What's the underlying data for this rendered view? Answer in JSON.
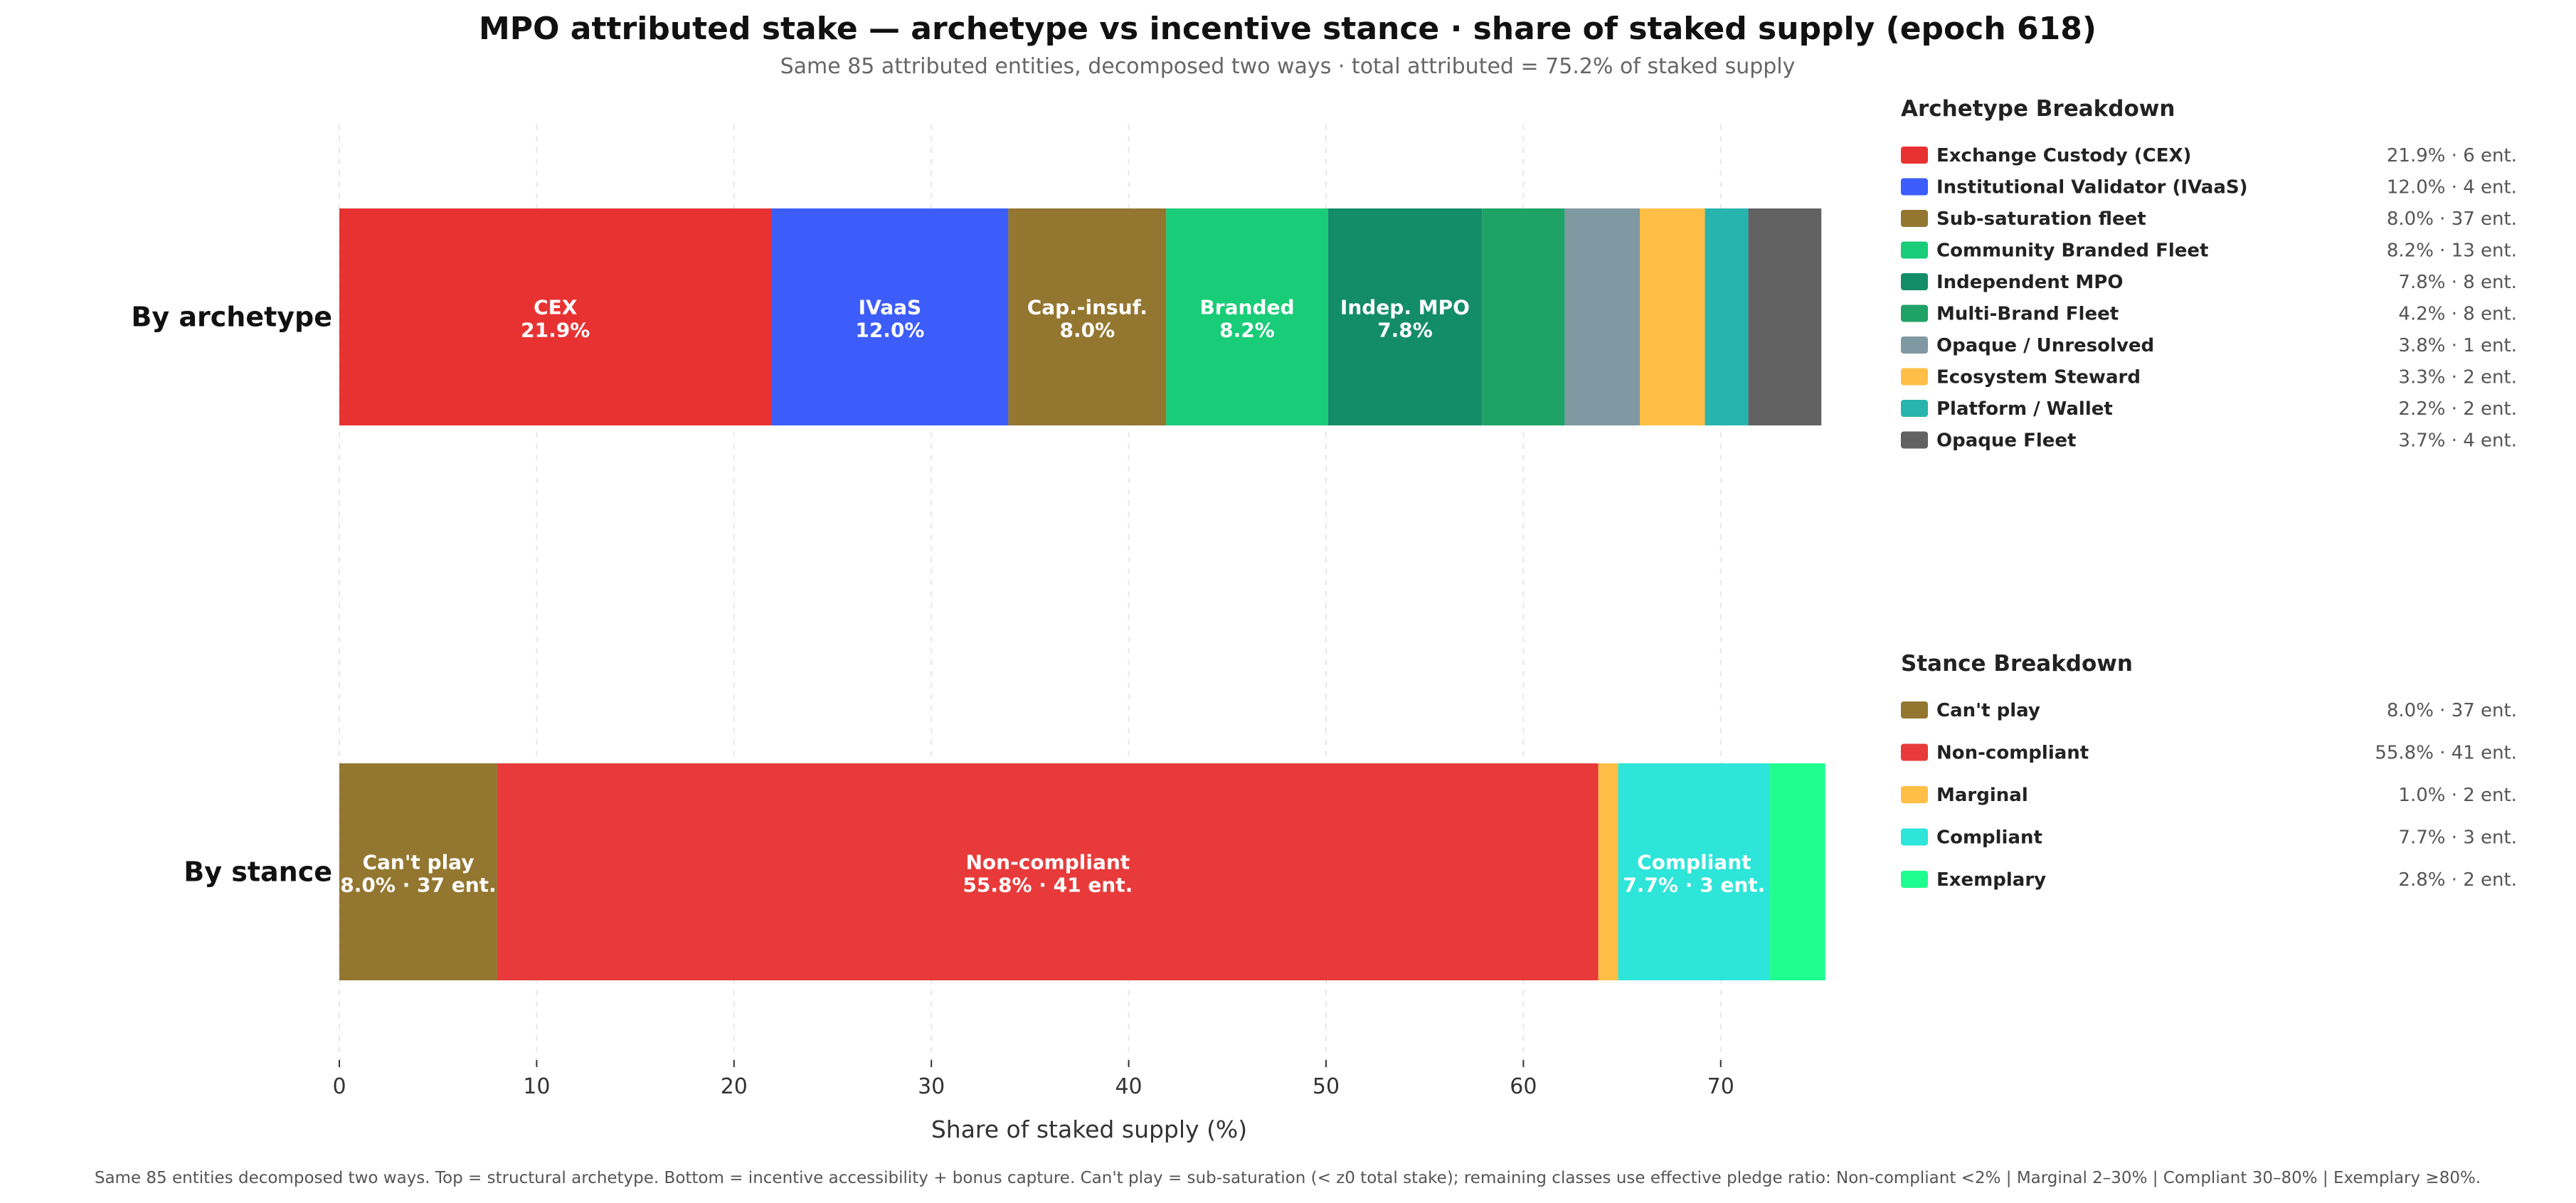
{
  "chart_data": {
    "type": "bar",
    "orientation": "horizontal-stacked",
    "title": "MPO attributed stake — archetype vs incentive stance · share of staked supply (epoch 618)",
    "subtitle": "Same 85 attributed entities, decomposed two ways · total attributed = 75.2% of staked supply",
    "xlabel": "Share of staked supply (%)",
    "xlim": [
      0,
      75.2
    ],
    "xticks": [
      0,
      10,
      20,
      30,
      40,
      50,
      60,
      70
    ],
    "grid": "vertical dashed",
    "footnote": "Same 85 entities decomposed two ways. Top = structural archetype. Bottom = incentive accessibility + bonus capture. Can't play = sub-saturation (< z0 total stake); remaining classes use effective pledge ratio: Non-compliant <2% | Marginal 2–30% | Compliant 30–80% | Exemplary ≥80%.",
    "rows": [
      {
        "label": "By archetype",
        "legend_title": "Archetype Breakdown",
        "segments": [
          {
            "name": "Exchange Custody (CEX)",
            "value": 21.9,
            "entities": 6,
            "legend_value": "21.9% · 6 ent.",
            "color": "#e83232",
            "bar_label": [
              "CEX",
              "21.9%"
            ]
          },
          {
            "name": "Institutional Validator (IVaaS)",
            "value": 12.0,
            "entities": 4,
            "legend_value": "12.0% · 4 ent.",
            "color": "#3c5dfa",
            "bar_label": [
              "IVaaS",
              "12.0%"
            ]
          },
          {
            "name": "Sub-saturation fleet",
            "value": 8.0,
            "entities": 37,
            "legend_value": "8.0% · 37 ent.",
            "color": "#937630",
            "bar_label": [
              "Cap.-insuf.",
              "8.0%"
            ]
          },
          {
            "name": "Community Branded Fleet",
            "value": 8.2,
            "entities": 13,
            "legend_value": "8.2% · 13 ent.",
            "color": "#19cc78",
            "bar_label": [
              "Branded",
              "8.2%"
            ]
          },
          {
            "name": "Independent MPO",
            "value": 7.8,
            "entities": 8,
            "legend_value": "7.8% · 8 ent.",
            "color": "#138d68",
            "bar_label": [
              "Indep. MPO",
              "7.8%"
            ]
          },
          {
            "name": "Multi-Brand Fleet",
            "value": 4.2,
            "entities": 8,
            "legend_value": "4.2% · 8 ent.",
            "color": "#1fa266",
            "bar_label": []
          },
          {
            "name": "Opaque / Unresolved",
            "value": 3.8,
            "entities": 1,
            "legend_value": "3.8% · 1 ent.",
            "color": "#8098a2",
            "bar_label": []
          },
          {
            "name": "Ecosystem Steward",
            "value": 3.3,
            "entities": 2,
            "legend_value": "3.3% · 2 ent.",
            "color": "#ffbe45",
            "bar_label": []
          },
          {
            "name": "Platform / Wallet",
            "value": 2.2,
            "entities": 2,
            "legend_value": "2.2% · 2 ent.",
            "color": "#27b4ae",
            "bar_label": []
          },
          {
            "name": "Opaque Fleet",
            "value": 3.7,
            "entities": 4,
            "legend_value": "3.7% · 4 ent.",
            "color": "#626262",
            "bar_label": []
          }
        ]
      },
      {
        "label": "By stance",
        "legend_title": "Stance Breakdown",
        "segments": [
          {
            "name": "Can't play",
            "value": 8.0,
            "entities": 37,
            "legend_value": "8.0% · 37 ent.",
            "color": "#937630",
            "bar_label": [
              "Can't play",
              "8.0% · 37 ent."
            ]
          },
          {
            "name": "Non-compliant",
            "value": 55.8,
            "entities": 41,
            "legend_value": "55.8% · 41 ent.",
            "color": "#e83a3a",
            "bar_label": [
              "Non-compliant",
              "55.8% · 41 ent."
            ]
          },
          {
            "name": "Marginal",
            "value": 1.0,
            "entities": 2,
            "legend_value": "1.0% · 2 ent.",
            "color": "#ffbe45",
            "bar_label": []
          },
          {
            "name": "Compliant",
            "value": 7.7,
            "entities": 3,
            "legend_value": "7.7% · 3 ent.",
            "color": "#2de5d8",
            "bar_label": [
              "Compliant",
              "7.7% · 3 ent."
            ]
          },
          {
            "name": "Exemplary",
            "value": 2.8,
            "entities": 2,
            "legend_value": "2.8% · 2 ent.",
            "color": "#1ffd8e",
            "bar_label": []
          }
        ]
      }
    ]
  }
}
